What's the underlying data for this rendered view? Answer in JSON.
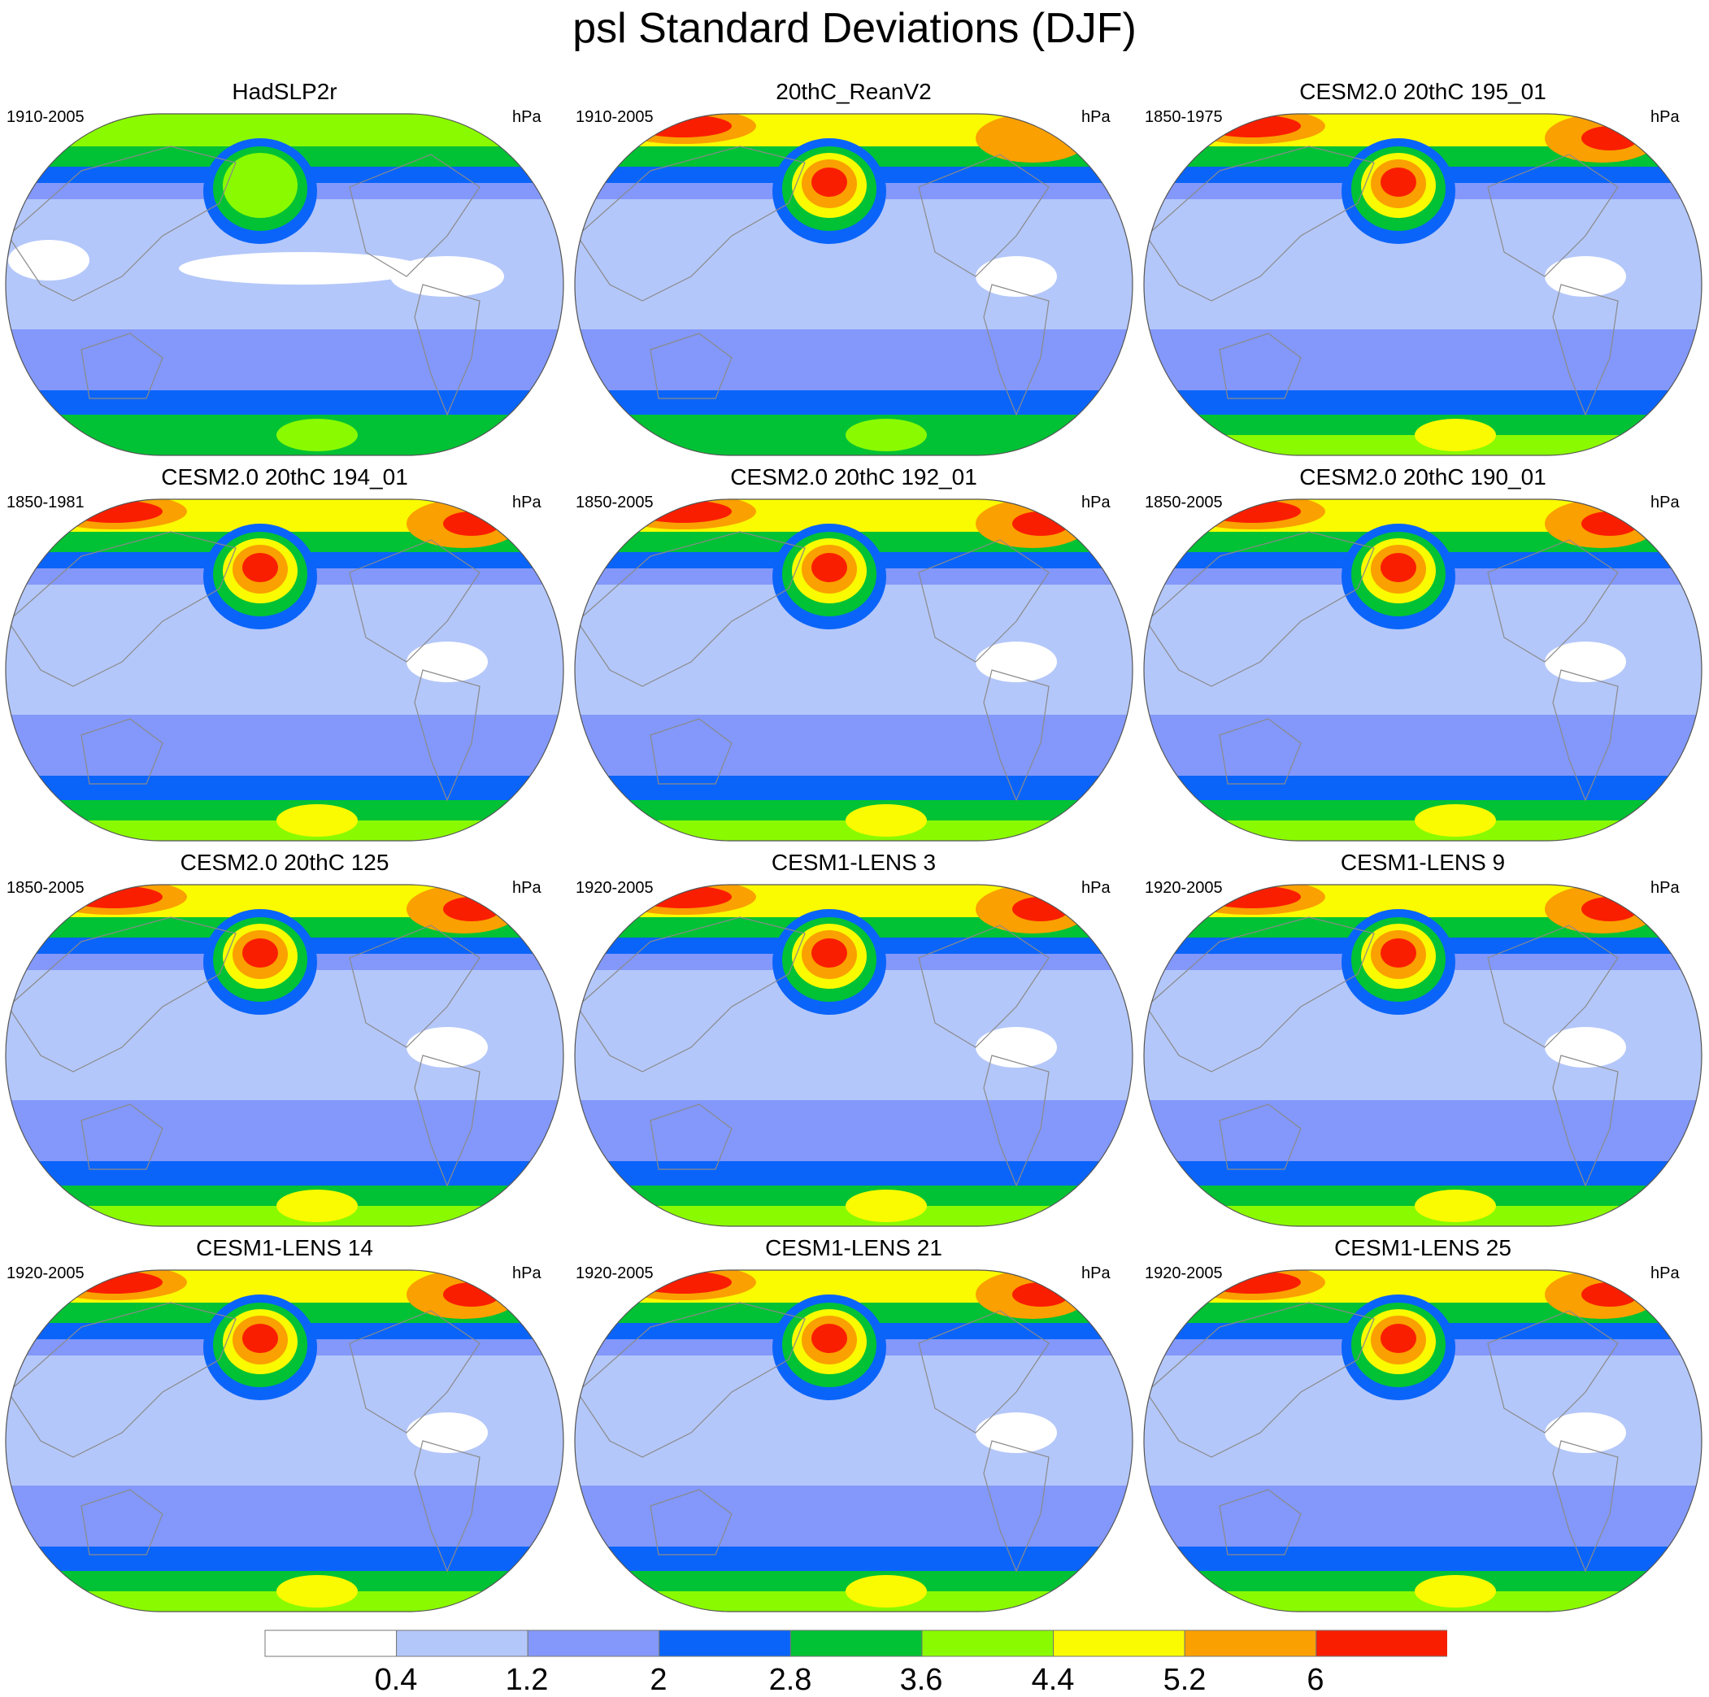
{
  "title": "psl Standard Deviations (DJF)",
  "units": "hPa",
  "colorbar": {
    "labels": [
      "0.4",
      "1.2",
      "2",
      "2.8",
      "3.6",
      "4.4",
      "5.2",
      "6"
    ],
    "colors": [
      "#ffffff",
      "#b4c7fa",
      "#8398fa",
      "#0a64fa",
      "#00c234",
      "#8afa00",
      "#fafa00",
      "#faa000",
      "#fa1e00"
    ]
  },
  "panels": [
    {
      "title": "HadSLP2r",
      "period": "1910-2005"
    },
    {
      "title": "20thC_ReanV2",
      "period": "1910-2005"
    },
    {
      "title": "CESM2.0 20thC 195_01",
      "period": "1850-1975"
    },
    {
      "title": "CESM2.0 20thC 194_01",
      "period": "1850-1981"
    },
    {
      "title": "CESM2.0 20thC 192_01",
      "period": "1850-2005"
    },
    {
      "title": "CESM2.0 20thC 190_01",
      "period": "1850-2005"
    },
    {
      "title": "CESM2.0 20thC 125",
      "period": "1850-2005"
    },
    {
      "title": "CESM1-LENS 3",
      "period": "1920-2005"
    },
    {
      "title": "CESM1-LENS 9",
      "period": "1920-2005"
    },
    {
      "title": "CESM1-LENS 14",
      "period": "1920-2005"
    },
    {
      "title": "CESM1-LENS 21",
      "period": "1920-2005"
    },
    {
      "title": "CESM1-LENS 25",
      "period": "1920-2005"
    }
  ]
}
